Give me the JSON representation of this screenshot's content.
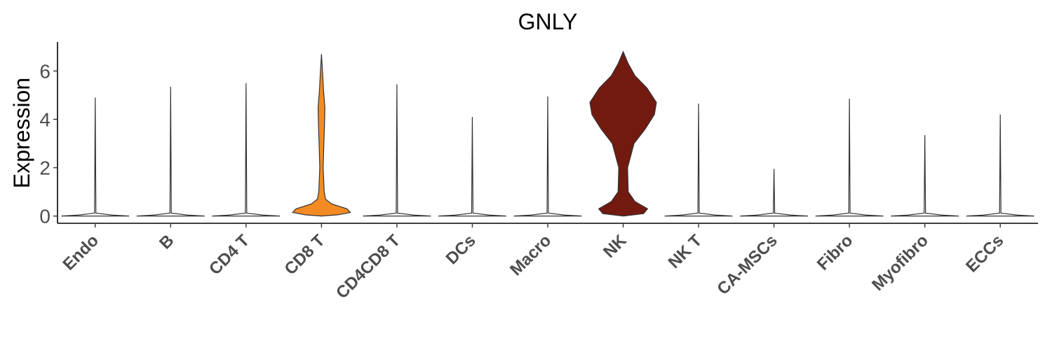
{
  "chart_data": {
    "type": "violin",
    "title": "GNLY",
    "xlabel": "",
    "ylabel": "Expression",
    "ylim": [
      -0.3,
      7.2
    ],
    "yticks": [
      0,
      2,
      4,
      6
    ],
    "categories": [
      "Endo",
      "B",
      "CD4 T",
      "CD8 T",
      "CD4CD8 T",
      "DCs",
      "Macro",
      "NK",
      "NK T",
      "CA-MSCs",
      "Fibro",
      "Myofibro",
      "ECCs"
    ],
    "max_values": [
      4.9,
      5.35,
      5.5,
      6.7,
      5.45,
      4.1,
      4.95,
      6.8,
      4.65,
      1.95,
      4.85,
      3.35,
      4.2
    ],
    "fill_colors": [
      "#ffffff",
      "#ffffff",
      "#ffffff",
      "#f28b24",
      "#ffffff",
      "#ffffff",
      "#ffffff",
      "#721a10",
      "#ffffff",
      "#ffffff",
      "#ffffff",
      "#ffffff",
      "#ffffff"
    ],
    "density_profiles": {
      "CD8 T": [
        [
          0.0,
          0.0
        ],
        [
          0.05,
          0.48
        ],
        [
          0.15,
          0.85
        ],
        [
          0.3,
          0.75
        ],
        [
          0.5,
          0.3
        ],
        [
          0.7,
          0.12
        ],
        [
          1.0,
          0.08
        ],
        [
          2.0,
          0.05
        ],
        [
          3.0,
          0.07
        ],
        [
          3.8,
          0.09
        ],
        [
          4.5,
          0.1
        ],
        [
          5.2,
          0.06
        ],
        [
          6.0,
          0.03
        ],
        [
          6.7,
          0.0
        ]
      ],
      "NK": [
        [
          0.0,
          0.0
        ],
        [
          0.1,
          0.6
        ],
        [
          0.3,
          0.72
        ],
        [
          0.6,
          0.35
        ],
        [
          1.0,
          0.15
        ],
        [
          2.0,
          0.13
        ],
        [
          3.0,
          0.32
        ],
        [
          3.6,
          0.65
        ],
        [
          4.2,
          0.92
        ],
        [
          4.7,
          0.98
        ],
        [
          5.3,
          0.7
        ],
        [
          5.8,
          0.35
        ],
        [
          6.3,
          0.15
        ],
        [
          6.8,
          0.0
        ]
      ]
    }
  }
}
